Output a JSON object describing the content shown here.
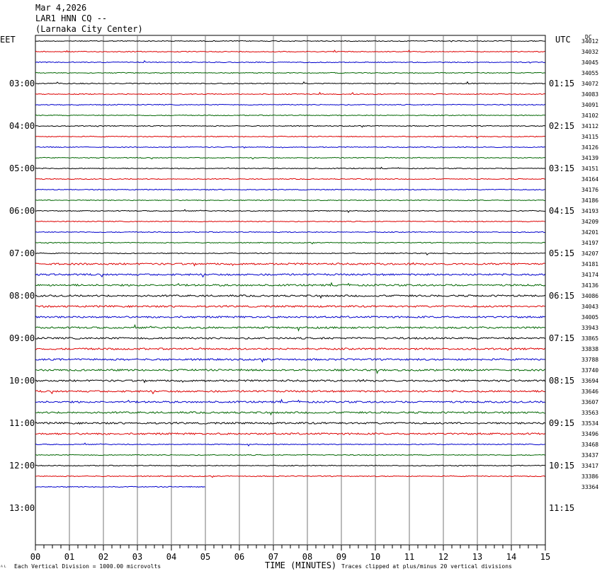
{
  "header": {
    "date": "Mar 4,2026",
    "station": "LAR1 HNN CQ --",
    "location": "(Larnaka City Center)"
  },
  "left_tz": "EET",
  "right_tz": "UTC",
  "dc_label": "DC",
  "footer": {
    "left_note": "Each Vertical Division = 1000.00 microvolts",
    "x_title": "TIME (MINUTES)",
    "right_note": "Traces clipped at plus/minus 20 vertical divisions"
  },
  "chart_data": {
    "type": "line",
    "title": "LAR1 HNN CQ --",
    "xlabel": "TIME (MINUTES)",
    "xlim": [
      0,
      15
    ],
    "x_ticks": [
      "00",
      "01",
      "02",
      "03",
      "04",
      "05",
      "06",
      "07",
      "08",
      "09",
      "10",
      "11",
      "12",
      "13",
      "14",
      "15"
    ],
    "left_hour_labels": [
      "03:00",
      "04:00",
      "05:00",
      "06:00",
      "07:00",
      "08:00",
      "09:00",
      "10:00",
      "11:00",
      "12:00",
      "13:00"
    ],
    "right_hour_labels": [
      "01:15",
      "02:15",
      "03:15",
      "04:15",
      "05:15",
      "06:15",
      "07:15",
      "08:15",
      "09:15",
      "10:15",
      "11:15"
    ],
    "trace_colors": [
      "#000000",
      "#dd0000",
      "#0000cc",
      "#006600"
    ],
    "traces": [
      {
        "dc": "34012",
        "end_minute": 15
      },
      {
        "dc": "34032",
        "end_minute": 15
      },
      {
        "dc": "34045",
        "end_minute": 15
      },
      {
        "dc": "34055",
        "end_minute": 15
      },
      {
        "dc": "34072",
        "end_minute": 15
      },
      {
        "dc": "34083",
        "end_minute": 15
      },
      {
        "dc": "34091",
        "end_minute": 15
      },
      {
        "dc": "34102",
        "end_minute": 15
      },
      {
        "dc": "34112",
        "end_minute": 15
      },
      {
        "dc": "34115",
        "end_minute": 15
      },
      {
        "dc": "34126",
        "end_minute": 15
      },
      {
        "dc": "34139",
        "end_minute": 15
      },
      {
        "dc": "34151",
        "end_minute": 15
      },
      {
        "dc": "34164",
        "end_minute": 15
      },
      {
        "dc": "34176",
        "end_minute": 15
      },
      {
        "dc": "34186",
        "end_minute": 15
      },
      {
        "dc": "34193",
        "end_minute": 15
      },
      {
        "dc": "34209",
        "end_minute": 15
      },
      {
        "dc": "34201",
        "end_minute": 15
      },
      {
        "dc": "34197",
        "end_minute": 15
      },
      {
        "dc": "34207",
        "end_minute": 15
      },
      {
        "dc": "34181",
        "end_minute": 15
      },
      {
        "dc": "34174",
        "end_minute": 15
      },
      {
        "dc": "34136",
        "end_minute": 15
      },
      {
        "dc": "34086",
        "end_minute": 15
      },
      {
        "dc": "34043",
        "end_minute": 15
      },
      {
        "dc": "34005",
        "end_minute": 15
      },
      {
        "dc": "33943",
        "end_minute": 15
      },
      {
        "dc": "33865",
        "end_minute": 15
      },
      {
        "dc": "33838",
        "end_minute": 15
      },
      {
        "dc": "33788",
        "end_minute": 15
      },
      {
        "dc": "33740",
        "end_minute": 15
      },
      {
        "dc": "33694",
        "end_minute": 15
      },
      {
        "dc": "33646",
        "end_minute": 15
      },
      {
        "dc": "33607",
        "end_minute": 15
      },
      {
        "dc": "33563",
        "end_minute": 15
      },
      {
        "dc": "33534",
        "end_minute": 15
      },
      {
        "dc": "33496",
        "end_minute": 15
      },
      {
        "dc": "33468",
        "end_minute": 15
      },
      {
        "dc": "33437",
        "end_minute": 15
      },
      {
        "dc": "33417",
        "end_minute": 15
      },
      {
        "dc": "33386",
        "end_minute": 15
      },
      {
        "dc": "33364",
        "end_minute": 5
      }
    ]
  }
}
